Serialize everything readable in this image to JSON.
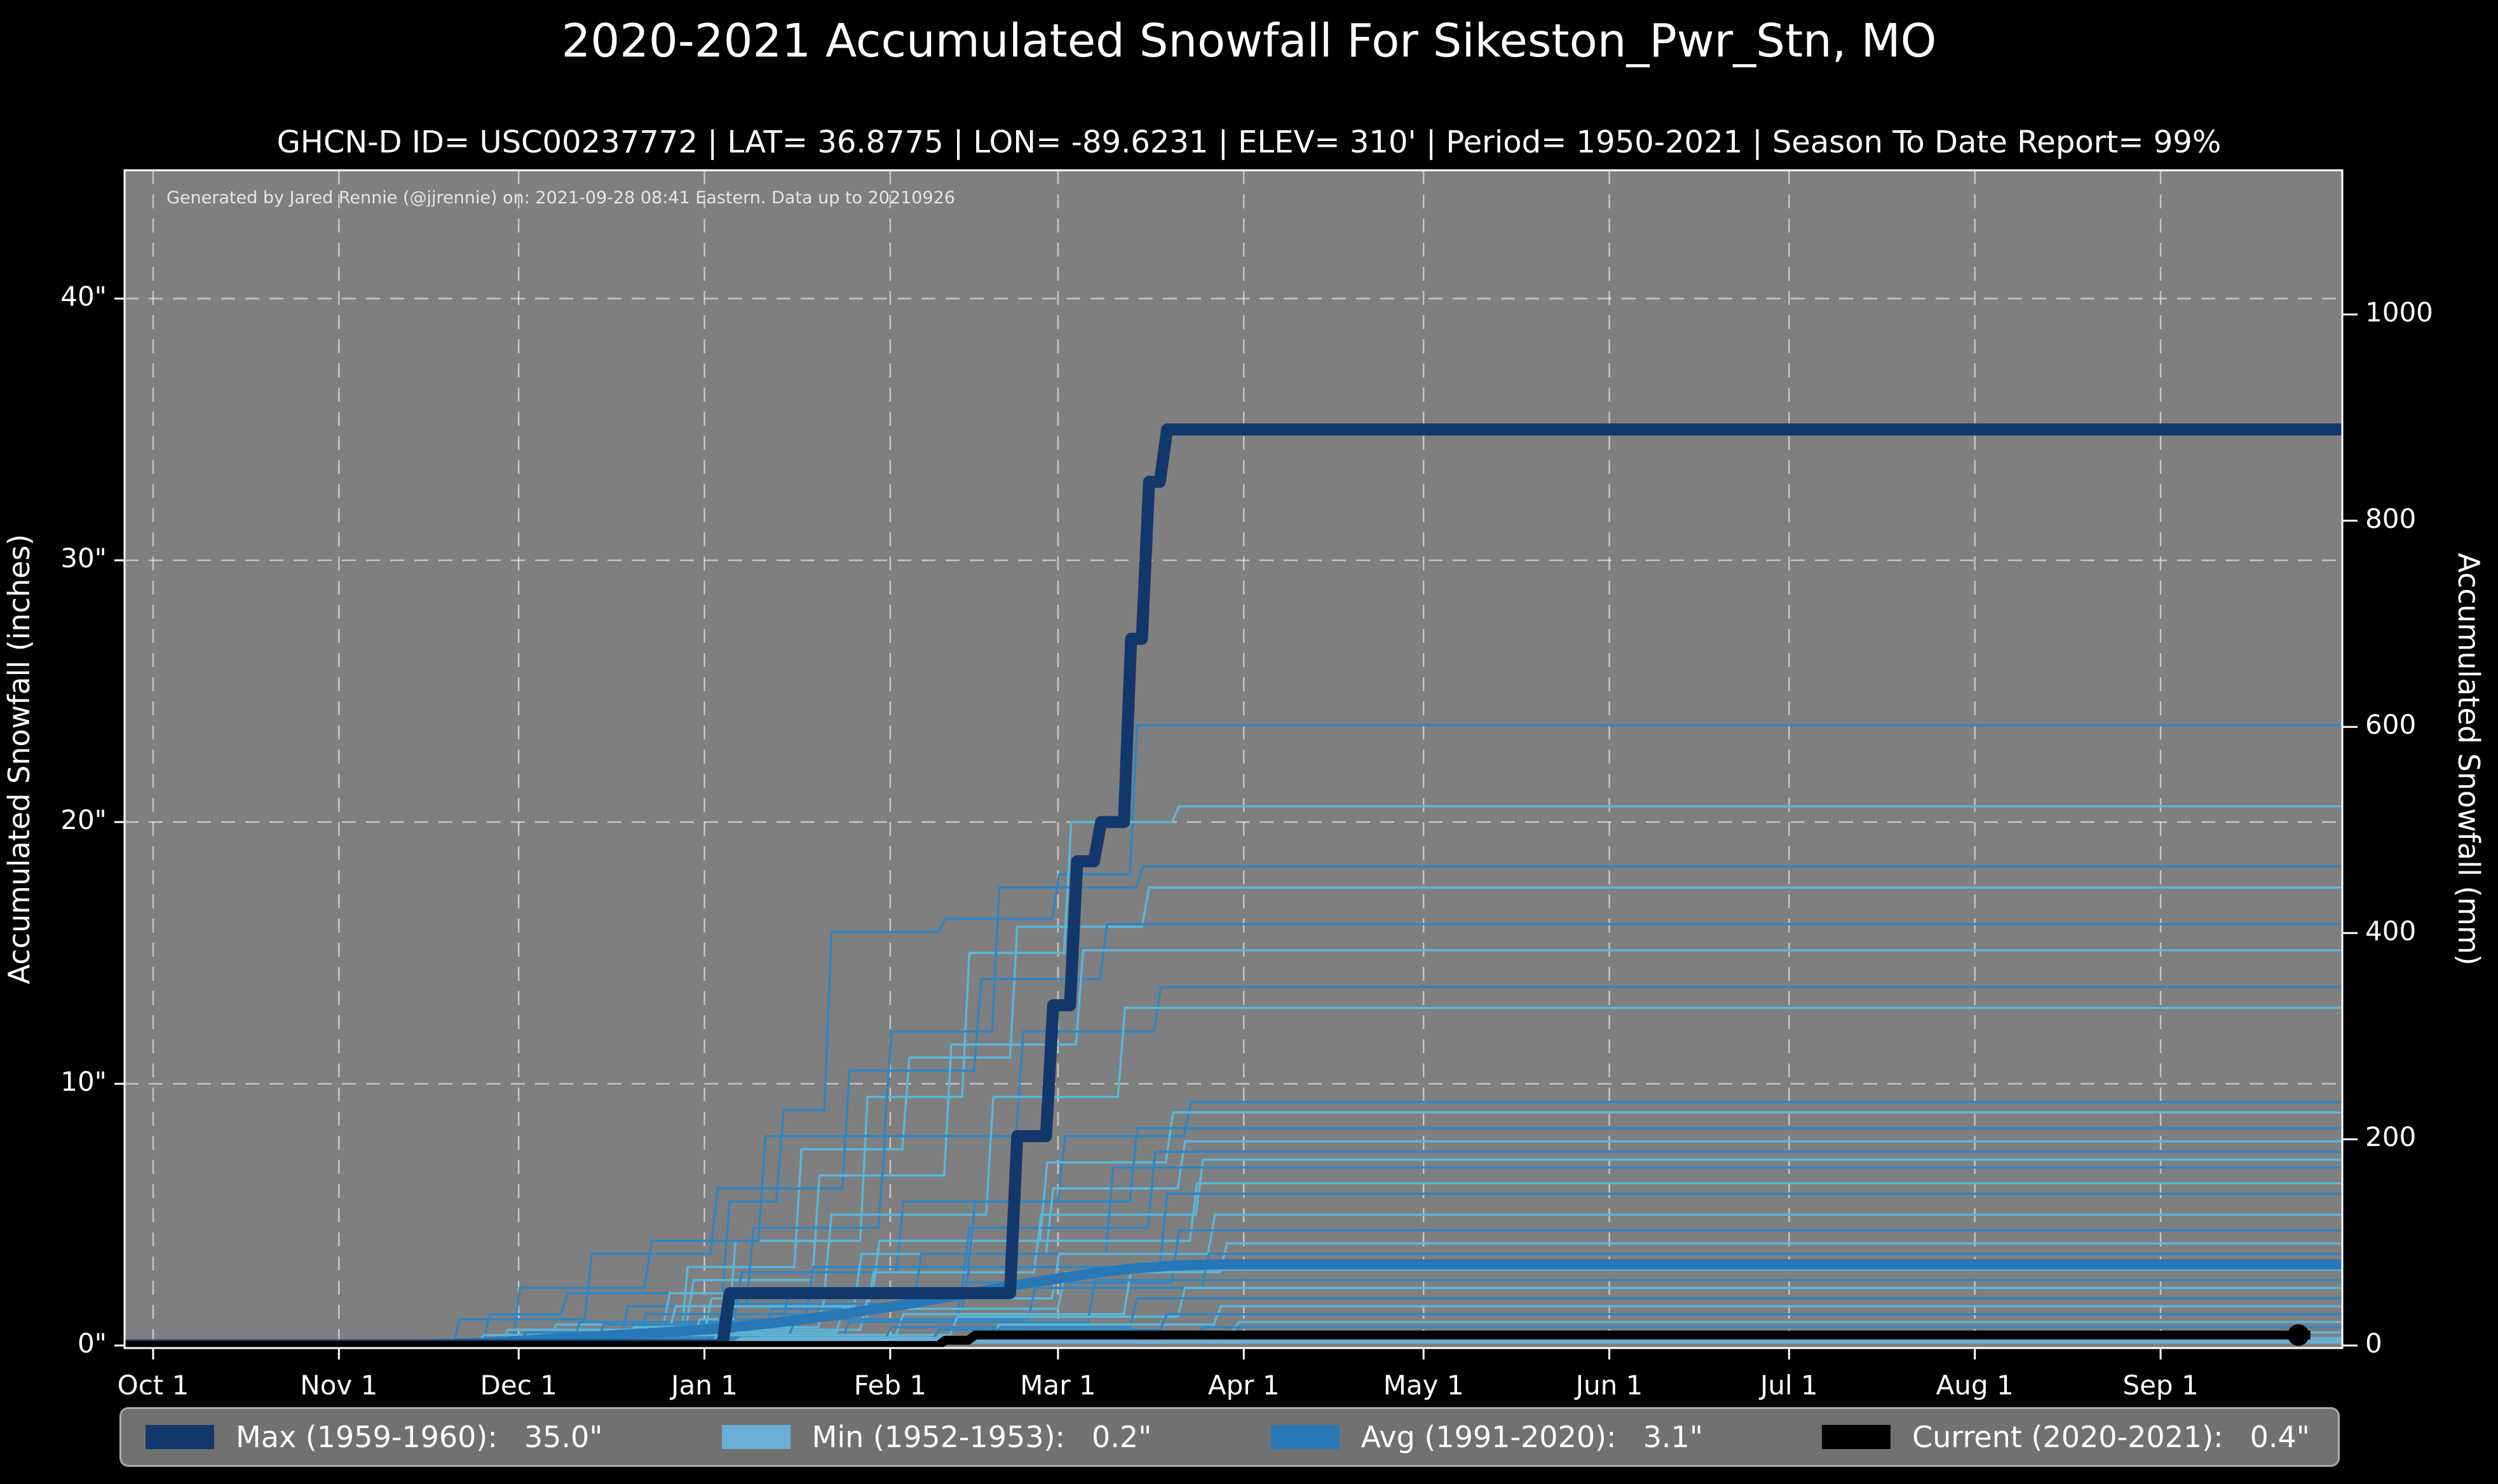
{
  "title": "2020-2021 Accumulated Snowfall For Sikeston_Pwr_Stn, MO",
  "subtitle": "GHCN-D ID= USC00237772 | LAT= 36.8775 | LON= -89.6231 | ELEV= 310' | Period= 1950-2021 | Season To Date Report= 99%",
  "attribution": "Generated by Jared Rennie (@jjrennie) on: 2021-09-28 08:41 Eastern. Data up to 20210926",
  "colors": {
    "background": "#000000",
    "plot_background": "#7f7f7f",
    "grid": "rgba(255,255,255,0.55)",
    "spine": "#ffffff",
    "max_line": "#12386b",
    "min_line": "#6baed6",
    "avg_line": "#2878b8",
    "current_line": "#000000",
    "hist_a": "#2f86c4",
    "hist_b": "#58b7db"
  },
  "legend": [
    {
      "id": "max",
      "label": "Max (1959-1960):",
      "value": "35.0\"",
      "color": "#12386b"
    },
    {
      "id": "min",
      "label": "Min (1952-1953):",
      "value": "0.2\"",
      "color": "#6baed6"
    },
    {
      "id": "avg",
      "label": "Avg (1991-2020):",
      "value": "3.1\"",
      "color": "#2878b8"
    },
    {
      "id": "current",
      "label": "Current (2020-2021):",
      "value": "0.4\"",
      "color": "#000000"
    }
  ],
  "chart_data": {
    "type": "line",
    "title": "2020-2021 Accumulated Snowfall For Sikeston_Pwr_Stn, MO",
    "x_axis": {
      "tick_labels": [
        "Oct 1",
        "Nov 1",
        "Dec 1",
        "Jan 1",
        "Feb 1",
        "Mar 1",
        "Apr 1",
        "May 1",
        "Jun 1",
        "Jul 1",
        "Aug 1",
        "Sep 1"
      ],
      "tick_days": [
        0,
        31,
        61,
        92,
        123,
        151,
        182,
        212,
        243,
        273,
        304,
        335
      ],
      "range_days": [
        -5,
        366
      ]
    },
    "y_left": {
      "label": "Accumulated Snowfall (inches)",
      "ticks": [
        "0\"",
        "10\"",
        "20\"",
        "30\"",
        "40\""
      ],
      "tick_values": [
        0,
        10,
        20,
        30,
        40
      ],
      "range": [
        0,
        45
      ]
    },
    "y_right": {
      "label": "Accumulated Snowfall (mm)",
      "ticks": [
        "0",
        "200",
        "400",
        "600",
        "800",
        "1000"
      ],
      "tick_values": [
        0,
        200,
        400,
        600,
        800,
        1000
      ]
    },
    "grid": true,
    "legend_position": "bottom",
    "series": [
      {
        "id": "min",
        "name": "Min (1952-1953)",
        "final_inches": 0.2,
        "color": "#6baed6",
        "width": 11,
        "mode": "step",
        "points": [
          [
            97,
            0.2
          ]
        ],
        "end_day": 366
      },
      {
        "id": "avg",
        "name": "Avg (1991-2020)",
        "final_inches": 3.1,
        "color": "#2878b8",
        "width": 16,
        "mode": "line",
        "points": [
          [
            40,
            0
          ],
          [
            55,
            0.1
          ],
          [
            70,
            0.3
          ],
          [
            85,
            0.5
          ],
          [
            95,
            0.65
          ],
          [
            105,
            0.9
          ],
          [
            115,
            1.2
          ],
          [
            125,
            1.55
          ],
          [
            135,
            1.95
          ],
          [
            145,
            2.35
          ],
          [
            152,
            2.6
          ],
          [
            158,
            2.8
          ],
          [
            164,
            2.95
          ],
          [
            170,
            3.05
          ],
          [
            178,
            3.1
          ],
          [
            366,
            3.1
          ]
        ],
        "end_day": 366
      },
      {
        "id": "max",
        "name": "Max (1959-1960)",
        "final_inches": 35.0,
        "color": "#12386b",
        "width": 19,
        "mode": "step",
        "points": [
          [
            95,
            2
          ],
          [
            143,
            8
          ],
          [
            149,
            13
          ],
          [
            153,
            18.5
          ],
          [
            157,
            20
          ],
          [
            162,
            27
          ],
          [
            165,
            33
          ],
          [
            168,
            35
          ]
        ],
        "end_day": 366
      },
      {
        "id": "current",
        "name": "Current (2020-2021)",
        "final_inches": 0.4,
        "color": "#000000",
        "width": 14,
        "mode": "step",
        "points": [
          [
            131,
            0.2
          ],
          [
            136,
            0.4
          ]
        ],
        "end_day": 360,
        "end_marker": [
          358,
          0.4
        ]
      }
    ],
    "historical_series": [
      {
        "c": "a",
        "pts": [
          [
            55,
            1.2
          ],
          [
            68,
            2.0
          ],
          [
            95,
            5.5
          ],
          [
            104,
            9.0
          ],
          [
            112,
            15.8
          ],
          [
            131,
            16.3
          ],
          [
            150,
            18.0
          ],
          [
            163,
            23.7
          ]
        ]
      },
      {
        "c": "b",
        "pts": [
          [
            75,
            0.5
          ],
          [
            96,
            4.0
          ],
          [
            118,
            9.5
          ],
          [
            135,
            15.0
          ],
          [
            152,
            20.0
          ],
          [
            170,
            20.6
          ]
        ]
      },
      {
        "c": "a",
        "pts": [
          [
            60,
            2.2
          ],
          [
            82,
            4.0
          ],
          [
            101,
            8.0
          ],
          [
            122,
            12.0
          ],
          [
            140,
            17.5
          ],
          [
            164,
            18.3
          ]
        ]
      },
      {
        "c": "b",
        "pts": [
          [
            88,
            3.0
          ],
          [
            107,
            7.5
          ],
          [
            125,
            11.0
          ],
          [
            143,
            16.0
          ],
          [
            165,
            17.5
          ]
        ]
      },
      {
        "c": "a",
        "pts": [
          [
            50,
            1.0
          ],
          [
            72,
            3.5
          ],
          [
            93,
            6.0
          ],
          [
            115,
            10.5
          ],
          [
            137,
            14.0
          ],
          [
            158,
            16.1
          ]
        ]
      },
      {
        "c": "b",
        "pts": [
          [
            66,
            0.8
          ],
          [
            89,
            2.5
          ],
          [
            110,
            6.5
          ],
          [
            132,
            11.5
          ],
          [
            154,
            15.1
          ]
        ]
      },
      {
        "c": "a",
        "pts": [
          [
            78,
            1.5
          ],
          [
            99,
            4.5
          ],
          [
            121,
            8.0
          ],
          [
            144,
            12.0
          ],
          [
            167,
            13.7
          ]
        ]
      },
      {
        "c": "b",
        "pts": [
          [
            58,
            0.6
          ],
          [
            85,
            2.0
          ],
          [
            112,
            5.0
          ],
          [
            139,
            9.5
          ],
          [
            161,
            12.9
          ]
        ]
      },
      {
        "c": "a",
        "pts": [
          [
            70,
            0.9
          ],
          [
            97,
            2.8
          ],
          [
            124,
            5.5
          ],
          [
            151,
            8.0
          ],
          [
            172,
            9.3
          ]
        ]
      },
      {
        "c": "b",
        "pts": [
          [
            63,
            0.5
          ],
          [
            92,
            1.8
          ],
          [
            120,
            4.0
          ],
          [
            148,
            7.0
          ],
          [
            169,
            8.9
          ]
        ]
      },
      {
        "c": "a",
        "pts": [
          [
            81,
            1.2
          ],
          [
            109,
            3.0
          ],
          [
            136,
            5.5
          ],
          [
            163,
            8.3
          ]
        ]
      },
      {
        "c": "b",
        "pts": [
          [
            54,
            0.4
          ],
          [
            86,
            1.5
          ],
          [
            117,
            3.5
          ],
          [
            149,
            6.0
          ],
          [
            171,
            7.8
          ]
        ]
      },
      {
        "c": "a",
        "pts": [
          [
            74,
            0.8
          ],
          [
            105,
            2.2
          ],
          [
            135,
            4.5
          ],
          [
            166,
            7.4
          ]
        ]
      },
      {
        "c": "b",
        "pts": [
          [
            90,
            1.0
          ],
          [
            119,
            2.8
          ],
          [
            147,
            5.0
          ],
          [
            174,
            7.1
          ]
        ]
      },
      {
        "c": "a",
        "pts": [
          [
            61,
            0.5
          ],
          [
            94,
            1.6
          ],
          [
            127,
            3.5
          ],
          [
            159,
            6.8
          ]
        ]
      },
      {
        "c": "b",
        "pts": [
          [
            79,
            0.7
          ],
          [
            111,
            2.0
          ],
          [
            142,
            4.0
          ],
          [
            173,
            6.2
          ]
        ]
      },
      {
        "c": "a",
        "pts": [
          [
            68,
            0.4
          ],
          [
            102,
            1.4
          ],
          [
            135,
            3.0
          ],
          [
            168,
            5.8
          ]
        ]
      },
      {
        "c": "b",
        "pts": [
          [
            85,
            0.6
          ],
          [
            118,
            1.8
          ],
          [
            150,
            3.5
          ],
          [
            176,
            5.0
          ]
        ]
      },
      {
        "c": "a",
        "pts": [
          [
            57,
            0.3
          ],
          [
            96,
            1.0
          ],
          [
            134,
            2.4
          ],
          [
            170,
            4.4
          ]
        ]
      },
      {
        "c": "b",
        "pts": [
          [
            76,
            0.5
          ],
          [
            114,
            1.4
          ],
          [
            151,
            2.8
          ],
          [
            178,
            3.9
          ]
        ]
      },
      {
        "c": "a",
        "pts": [
          [
            65,
            0.3
          ],
          [
            106,
            1.0
          ],
          [
            146,
            2.2
          ],
          [
            175,
            3.5
          ]
        ]
      },
      {
        "c": "b",
        "pts": [
          [
            84,
            0.4
          ],
          [
            124,
            1.2
          ],
          [
            162,
            2.9
          ]
        ]
      },
      {
        "c": "a",
        "pts": [
          [
            72,
            0.3
          ],
          [
            115,
            0.9
          ],
          [
            156,
            2.5
          ]
        ]
      },
      {
        "c": "b",
        "pts": [
          [
            93,
            0.4
          ],
          [
            133,
            1.1
          ],
          [
            171,
            2.2
          ]
        ]
      },
      {
        "c": "a",
        "pts": [
          [
            80,
            0.2
          ],
          [
            122,
            0.7
          ],
          [
            163,
            1.8
          ]
        ]
      },
      {
        "c": "b",
        "pts": [
          [
            100,
            0.3
          ],
          [
            140,
            0.8
          ],
          [
            177,
            1.5
          ]
        ]
      },
      {
        "c": "a",
        "pts": [
          [
            88,
            0.2
          ],
          [
            130,
            0.6
          ],
          [
            168,
            1.2
          ]
        ]
      },
      {
        "c": "b",
        "pts": [
          [
            108,
            0.2
          ],
          [
            147,
            0.5
          ],
          [
            180,
            0.9
          ]
        ]
      },
      {
        "c": "a",
        "pts": [
          [
            95,
            0.15
          ],
          [
            138,
            0.4
          ],
          [
            174,
            0.7
          ]
        ]
      },
      {
        "c": "b",
        "pts": [
          [
            116,
            0.2
          ],
          [
            155,
            0.5
          ]
        ]
      }
    ]
  }
}
